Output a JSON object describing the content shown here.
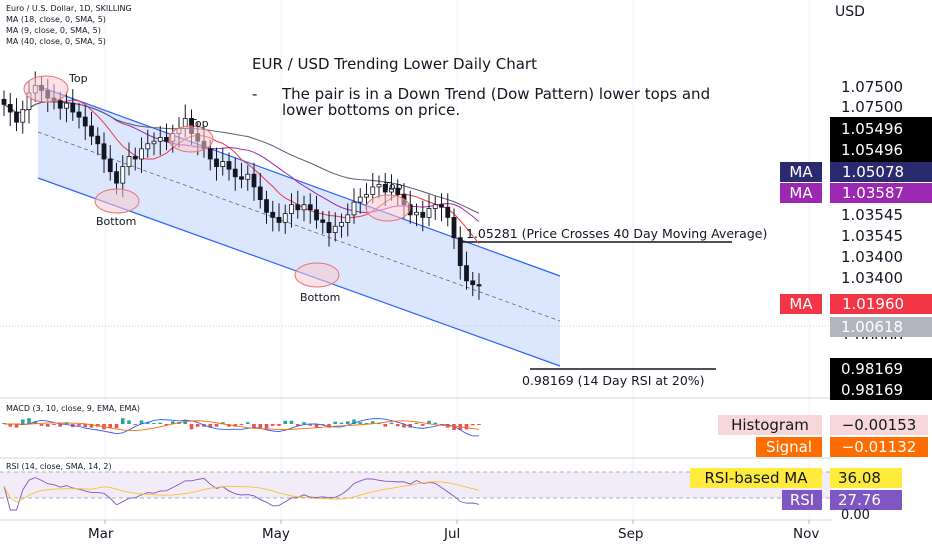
{
  "header": {
    "symbol_line": "Euro / U.S. Dollar, 1D, SKILLING",
    "ma_lines": [
      "MA (18, close, 0, SMA, 5)",
      "MA (9, close, 0, SMA, 5)",
      "MA (40, close, 0, SMA, 5)"
    ]
  },
  "currency": "USD",
  "title": "EUR / USD Trending Lower Daily Chart",
  "note": {
    "bullet": "-",
    "text": "The pair is in a Down Trend (Dow Pattern) lower tops and lower bottoms on price."
  },
  "annotations": {
    "crosses_ma": "1.05281 (Price Crosses 40 Day Moving Average)",
    "rsi_low": "0.98169 (14 Day RSI at 20%)",
    "top_labels": [
      "Top",
      "Top",
      "Top"
    ],
    "bottom_labels": [
      "Bottom",
      "Bottom"
    ]
  },
  "price_axis": {
    "labels": [
      "1.07500",
      "1.07500",
      "1.05496",
      "1.05496",
      "1.03545",
      "1.03545",
      "1.03400",
      "1.03400",
      "1.00618",
      "0.98169",
      "0.98169"
    ],
    "partial_label": "1.00000"
  },
  "price_tags": [
    {
      "name": "MA",
      "value": "1.05078",
      "color": "#2a2a6e"
    },
    {
      "name": "MA",
      "value": "1.03587",
      "color": "#9c27b0"
    },
    {
      "name": "MA",
      "value": "1.01960",
      "color": "#f23645"
    }
  ],
  "macd": {
    "header": "MACD (3, 10, close, 9, EMA, EMA)",
    "histogram_label": "Histogram",
    "histogram_value": "−0.00153",
    "signal_label": "Signal",
    "signal_value": "−0.01132"
  },
  "rsi": {
    "header": "RSI (14, close, SMA, 14, 2)",
    "ma_label": "RSI-based MA",
    "ma_value": "36.08",
    "rsi_label": "RSI",
    "rsi_value": "27.76",
    "axis_bottom": "0.00"
  },
  "months": [
    "Mar",
    "May",
    "Jul",
    "Sep",
    "Nov"
  ],
  "colors": {
    "up": "#26a69a",
    "down": "#ef5350",
    "candle": "#131722",
    "channel_fill": "#d6e2fb",
    "channel_line": "#2962ff",
    "ma_red": "#f23645",
    "ma_purple": "#9c27b0",
    "ma_dark": "#5a5a6e",
    "rsi_line": "#7e57c2"
  },
  "chart_data": {
    "type": "candlestick",
    "title": "EUR / USD Trending Lower Daily Chart",
    "ylabel": "USD",
    "ylim": [
      0.965,
      1.095
    ],
    "x_ticks": [
      "Mar",
      "May",
      "Jul",
      "Sep",
      "Nov"
    ],
    "key_levels": [
      {
        "value": 1.05281,
        "label": "Price Crosses 40 Day Moving Average"
      },
      {
        "value": 0.98169,
        "label": "14 Day RSI at 20%"
      }
    ],
    "last_close": 1.00618,
    "moving_averages": [
      {
        "name": "MA (18)",
        "last": 1.03587
      },
      {
        "name": "MA (9)",
        "last": 1.0196
      },
      {
        "name": "MA (40)",
        "last": 1.05078
      }
    ],
    "closes": [
      1.0775,
      1.0745,
      1.0705,
      1.0755,
      1.082,
      1.085,
      1.083,
      1.08,
      1.079,
      1.076,
      1.078,
      1.0745,
      1.0725,
      1.069,
      1.065,
      1.062,
      1.056,
      1.051,
      1.0465,
      1.053,
      1.057,
      1.056,
      1.06,
      1.062,
      1.063,
      1.0645,
      1.063,
      1.066,
      1.068,
      1.072,
      1.066,
      1.063,
      1.06,
      1.056,
      1.053,
      1.055,
      1.052,
      1.049,
      1.048,
      1.05,
      1.045,
      1.04,
      1.035,
      1.033,
      1.031,
      1.0345,
      1.038,
      1.036,
      1.038,
      1.036,
      1.032,
      1.031,
      1.027,
      1.0295,
      1.031,
      1.034,
      1.039,
      1.041,
      1.042,
      1.045,
      1.046,
      1.043,
      1.0445,
      1.042,
      1.038,
      1.034,
      1.035,
      1.033,
      1.0365,
      1.038,
      1.037,
      1.033,
      1.025,
      1.014,
      1.008,
      1.0065,
      1.006
    ],
    "macd": {
      "histogram": -0.00153,
      "signal": -0.01132
    },
    "rsi": {
      "value": 27.76,
      "rsi_based_ma": 36.08
    }
  }
}
